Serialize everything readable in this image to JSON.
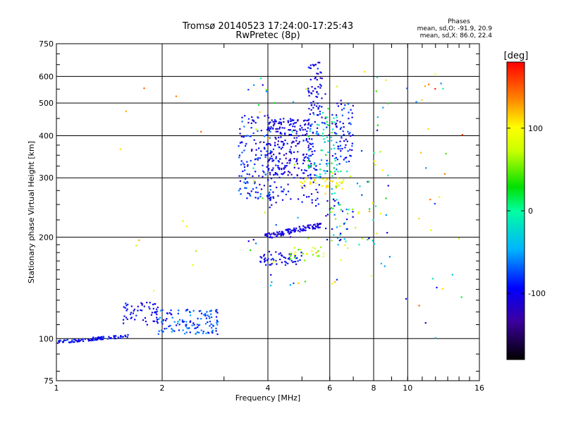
{
  "chart_data": {
    "type": "scatter",
    "title": "Tromsø 20140523 17:24:00-17:25:43",
    "subtitle": "RwPretec (8p)",
    "xlabel": "Frequency [MHz]",
    "ylabel": "Stationary phase Virtual Height [km]",
    "x_scale": "log",
    "y_scale": "log",
    "xlim": [
      1,
      16
    ],
    "ylim": [
      75,
      750
    ],
    "x_ticks": [
      1,
      2,
      4,
      6,
      8,
      10,
      16
    ],
    "x_grid": [
      2,
      4,
      6,
      8,
      10
    ],
    "y_ticks": [
      75,
      100,
      200,
      300,
      400,
      500,
      600,
      750
    ],
    "y_grid": [
      100,
      200,
      300,
      400,
      500,
      600
    ],
    "grid": true,
    "stats": {
      "title": "Phases",
      "lines": [
        "mean, sd,O: -91.9, 20.9",
        "mean, sd,X:  86.0, 22.4"
      ]
    },
    "colorbar": {
      "label": "[deg]",
      "range": [
        -180,
        180
      ],
      "ticks": [
        100,
        0,
        -100
      ]
    },
    "clusters": [
      {
        "x": [
          1.0,
          1.6
        ],
        "y": [
          97,
          104
        ],
        "n": 95,
        "phase": [
          -115,
          -70
        ],
        "shape": "trace"
      },
      {
        "x": [
          1.55,
          1.95
        ],
        "y": [
          110,
          128
        ],
        "n": 55,
        "phase": [
          -120,
          -80
        ]
      },
      {
        "x": [
          1.9,
          2.9
        ],
        "y": [
          103,
          122
        ],
        "n": 130,
        "phase": [
          -110,
          -50
        ]
      },
      {
        "x": [
          3.3,
          4.1
        ],
        "y": [
          260,
          460
        ],
        "n": 150,
        "phase": [
          -125,
          -60
        ]
      },
      {
        "x": [
          4.0,
          5.3
        ],
        "y": [
          300,
          450
        ],
        "n": 230,
        "phase": [
          -130,
          -80
        ]
      },
      {
        "x": [
          5.2,
          6.3
        ],
        "y": [
          300,
          470
        ],
        "n": 110,
        "phase": [
          -130,
          30
        ]
      },
      {
        "x": [
          5.2,
          5.7
        ],
        "y": [
          460,
          660
        ],
        "n": 60,
        "phase": [
          -120,
          -80
        ]
      },
      {
        "x": [
          6.2,
          7.0
        ],
        "y": [
          330,
          520
        ],
        "n": 70,
        "phase": [
          -120,
          -60
        ]
      },
      {
        "x": [
          3.9,
          5.7
        ],
        "y": [
          197,
          222
        ],
        "n": 110,
        "phase": [
          -125,
          -90
        ],
        "shape": "band"
      },
      {
        "x": [
          3.8,
          5.0
        ],
        "y": [
          165,
          182
        ],
        "n": 55,
        "phase": [
          -120,
          -80
        ]
      },
      {
        "x": [
          4.6,
          5.8
        ],
        "y": [
          170,
          188
        ],
        "n": 25,
        "phase": [
          40,
          100
        ]
      },
      {
        "x": [
          4.9,
          6.6
        ],
        "y": [
          280,
          300
        ],
        "n": 35,
        "phase": [
          80,
          120
        ]
      },
      {
        "x": [
          4.0,
          5.6
        ],
        "y": [
          245,
          300
        ],
        "n": 45,
        "phase": [
          -120,
          -80
        ]
      },
      {
        "x": [
          6.0,
          7.3
        ],
        "y": [
          185,
          320
        ],
        "n": 45,
        "phase": [
          -60,
          110
        ]
      },
      {
        "x": [
          5.8,
          7.0
        ],
        "y": [
          190,
          260
        ],
        "n": 20,
        "phase": [
          -120,
          -90
        ]
      },
      {
        "x": [
          7.3,
          8.9
        ],
        "y": [
          150,
          640
        ],
        "n": 40,
        "phase": [
          -110,
          130
        ]
      },
      {
        "x": [
          9.5,
          14.5
        ],
        "y": [
          90,
          640
        ],
        "n": 30,
        "phase": [
          -120,
          170
        ]
      },
      {
        "x": [
          1.5,
          2.7
        ],
        "y": [
          92,
          580
        ],
        "n": 12,
        "phase": [
          40,
          150
        ]
      },
      {
        "x": [
          3.5,
          6.5
        ],
        "y": [
          140,
          600
        ],
        "n": 60,
        "phase": [
          -130,
          130
        ]
      }
    ]
  }
}
